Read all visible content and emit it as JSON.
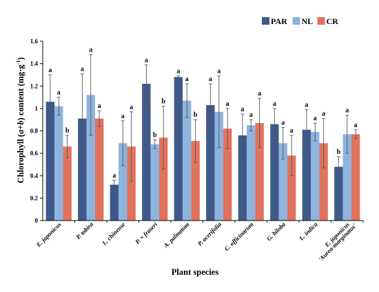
{
  "chart_data": {
    "type": "bar",
    "xlabel": "Plant species",
    "ylabel_pre": "Chlorophyll (",
    "ylabel_italic_a": "a",
    "ylabel_mid": "+",
    "ylabel_italic_b": "b",
    "ylabel_post": ") content (mg·g",
    "ylabel_sup": "-1",
    "ylabel_end": ")",
    "ylim": [
      0,
      1.6
    ],
    "yticks": [
      "0",
      "0.2",
      "0.4",
      "0.6",
      "0.8",
      "1",
      "1.2",
      "1.4",
      "1.6"
    ],
    "grid": false,
    "legend_position": "top-right",
    "categories": [
      [
        "E. japonicus"
      ],
      [
        "P. tobira"
      ],
      [
        "L. chinense"
      ],
      [
        "P. × fraseri"
      ],
      [
        "A. palmatum"
      ],
      [
        "P. acerifolia"
      ],
      [
        "C. officinarum"
      ],
      [
        "G. biloba"
      ],
      [
        "L. indica"
      ],
      [
        "E. japonicus",
        "'Aurea-marginatus'"
      ]
    ],
    "series": [
      {
        "name": "PAR",
        "color": "#3d5a8a",
        "values": [
          1.06,
          0.91,
          0.32,
          1.22,
          1.28,
          1.03,
          0.76,
          0.86,
          0.81,
          0.48
        ],
        "errors": [
          0.24,
          0.4,
          0.04,
          0.17,
          0.01,
          0.19,
          0.19,
          0.14,
          0.18,
          0.09
        ],
        "labels": [
          "a",
          "a",
          "a",
          "a",
          "a",
          "a",
          "a",
          "a",
          "a",
          "b"
        ]
      },
      {
        "name": "NL",
        "color": "#8db3de",
        "values": [
          1.02,
          1.12,
          0.69,
          0.68,
          1.07,
          0.97,
          0.85,
          0.69,
          0.79,
          0.77
        ],
        "errors": [
          0.08,
          0.36,
          0.2,
          0.04,
          0.15,
          0.32,
          0.05,
          0.14,
          0.08,
          0.17
        ],
        "labels": [
          "a",
          "a",
          "a",
          "b",
          "a",
          "a",
          "a",
          "a",
          "a",
          "a"
        ]
      },
      {
        "name": "CR",
        "color": "#e0735e",
        "values": [
          0.66,
          0.91,
          0.66,
          0.74,
          0.71,
          0.82,
          0.87,
          0.58,
          0.69,
          0.77
        ],
        "errors": [
          0.1,
          0.07,
          0.31,
          0.28,
          0.19,
          0.18,
          0.22,
          0.18,
          0.22,
          0.04
        ],
        "labels": [
          "b",
          "a",
          "a",
          "b",
          "b",
          "a",
          "a",
          "a",
          "a",
          "a"
        ]
      }
    ]
  }
}
